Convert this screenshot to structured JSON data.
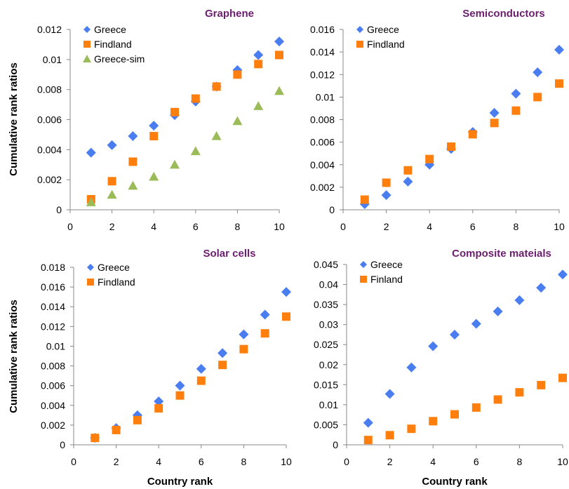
{
  "colors": {
    "greece": "#4A7EF0",
    "finland": "#FF7F0E",
    "greece_sim": "#9BBB59",
    "title": "#6B1E6E"
  },
  "markers": {
    "greece": "diamond",
    "finland": "square",
    "greece_sim": "triangle"
  },
  "chart_data": [
    {
      "type": "scatter",
      "title": "Graphene",
      "xlabel": "",
      "ylabel": "Cumulative rank ratios",
      "xlim": [
        0,
        10
      ],
      "ylim": [
        0,
        0.012
      ],
      "xticks": [
        "0",
        "2",
        "4",
        "6",
        "8",
        "10"
      ],
      "yticks": [
        "0",
        "0.002",
        "0.004",
        "0.006",
        "0.008",
        "0.01",
        "0.012"
      ],
      "legend_position": "top-left",
      "x": [
        1,
        2,
        3,
        4,
        5,
        6,
        7,
        8,
        9,
        10
      ],
      "series": [
        {
          "name": "Greece",
          "values": [
            0.0038,
            0.0043,
            0.0049,
            0.0056,
            0.0063,
            0.0072,
            0.0082,
            0.0093,
            0.0103,
            0.0112
          ]
        },
        {
          "name": "Findland",
          "values": [
            0.0007,
            0.0019,
            0.0032,
            0.0049,
            0.0065,
            0.0074,
            0.0082,
            0.009,
            0.0097,
            0.0103
          ]
        },
        {
          "name": "Greece-sim",
          "values": [
            0.0005,
            0.001,
            0.0016,
            0.0022,
            0.003,
            0.0039,
            0.0049,
            0.0059,
            0.0069,
            0.0079
          ]
        }
      ]
    },
    {
      "type": "scatter",
      "title": "Semiconductors",
      "xlabel": "",
      "ylabel": "",
      "xlim": [
        0,
        10
      ],
      "ylim": [
        0,
        0.016
      ],
      "xticks": [
        "0",
        "2",
        "4",
        "6",
        "8",
        "10"
      ],
      "yticks": [
        "0",
        "0.002",
        "0.004",
        "0.006",
        "0.008",
        "0.01",
        "0.012",
        "0.014",
        "0.016"
      ],
      "legend_position": "top-left",
      "x": [
        1,
        2,
        3,
        4,
        5,
        6,
        7,
        8,
        9,
        10
      ],
      "series": [
        {
          "name": "Greece",
          "values": [
            0.0005,
            0.0013,
            0.0025,
            0.004,
            0.0054,
            0.0069,
            0.0086,
            0.0103,
            0.0122,
            0.0142
          ]
        },
        {
          "name": "Findland",
          "values": [
            0.0009,
            0.0024,
            0.0035,
            0.0045,
            0.0056,
            0.0067,
            0.0077,
            0.0088,
            0.01,
            0.0112
          ]
        }
      ]
    },
    {
      "type": "scatter",
      "title": "Solar cells",
      "xlabel": "Country rank",
      "ylabel": "Cumulative rank ratios",
      "xlim": [
        0,
        10
      ],
      "ylim": [
        0,
        0.018
      ],
      "xticks": [
        "0",
        "2",
        "4",
        "6",
        "8",
        "10"
      ],
      "yticks": [
        "0",
        "0.002",
        "0.004",
        "0.006",
        "0.008",
        "0.01",
        "0.012",
        "0.014",
        "0.016",
        "0.018"
      ],
      "legend_position": "top-left",
      "x": [
        1,
        2,
        3,
        4,
        5,
        6,
        7,
        8,
        9,
        10
      ],
      "series": [
        {
          "name": "Greece",
          "values": [
            0.0007,
            0.0017,
            0.003,
            0.0044,
            0.006,
            0.0077,
            0.0093,
            0.0112,
            0.0132,
            0.0155
          ]
        },
        {
          "name": "Findland",
          "values": [
            0.0007,
            0.0015,
            0.0025,
            0.0037,
            0.005,
            0.0065,
            0.0081,
            0.0097,
            0.0113,
            0.013
          ]
        }
      ]
    },
    {
      "type": "scatter",
      "title": "Composite mateials",
      "xlabel": "Country rank",
      "ylabel": "",
      "xlim": [
        0,
        10
      ],
      "ylim": [
        0,
        0.045
      ],
      "xticks": [
        "0",
        "2",
        "4",
        "6",
        "8",
        "10"
      ],
      "yticks": [
        "0",
        "0.005",
        "0.01",
        "0.015",
        "0.02",
        "0.025",
        "0.03",
        "0.035",
        "0.04",
        "0.045"
      ],
      "legend_position": "top-left",
      "x": [
        1,
        2,
        3,
        4,
        5,
        6,
        7,
        8,
        9,
        10
      ],
      "series": [
        {
          "name": "Greece",
          "values": [
            0.0055,
            0.0127,
            0.0193,
            0.0246,
            0.0275,
            0.0302,
            0.0333,
            0.0361,
            0.0392,
            0.0425
          ]
        },
        {
          "name": "Finland",
          "values": [
            0.0012,
            0.0024,
            0.004,
            0.0059,
            0.0076,
            0.0093,
            0.0113,
            0.0131,
            0.0149,
            0.0167
          ]
        }
      ]
    }
  ]
}
